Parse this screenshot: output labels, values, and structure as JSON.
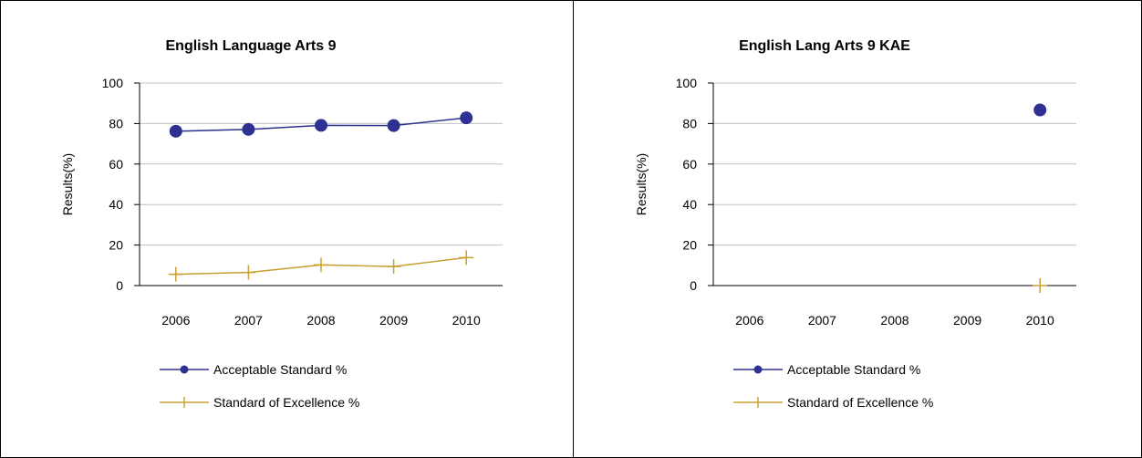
{
  "colors": {
    "acceptable": "#2e3192",
    "excellence": "#c8a032",
    "grid": "#c0c0c0",
    "axis": "#000000"
  },
  "chart_data": [
    {
      "type": "line",
      "title": "English Language Arts 9",
      "ylabel": "Results(%)",
      "xlabel": "",
      "categories": [
        "2006",
        "2007",
        "2008",
        "2009",
        "2010"
      ],
      "yticks": [
        "0",
        "20",
        "40",
        "60",
        "80",
        "100"
      ],
      "ylim": [
        0,
        100
      ],
      "grid": true,
      "legend_position": "bottom",
      "series": [
        {
          "name": "Acceptable Standard %",
          "marker": "circle",
          "values": [
            76.2,
            77.1,
            79.1,
            79.0,
            82.8
          ]
        },
        {
          "name": "Standard of Excellence %",
          "marker": "plus",
          "values": [
            5.6,
            6.5,
            10.2,
            9.4,
            13.8
          ]
        }
      ]
    },
    {
      "type": "line",
      "title": "English Lang Arts 9 KAE",
      "ylabel": "Results(%)",
      "xlabel": "",
      "categories": [
        "2006",
        "2007",
        "2008",
        "2009",
        "2010"
      ],
      "yticks": [
        "0",
        "20",
        "40",
        "60",
        "80",
        "100"
      ],
      "ylim": [
        0,
        100
      ],
      "grid": true,
      "legend_position": "bottom",
      "series": [
        {
          "name": "Acceptable Standard %",
          "marker": "circle",
          "values": [
            null,
            null,
            null,
            null,
            86.7
          ]
        },
        {
          "name": "Standard of Excellence %",
          "marker": "plus",
          "values": [
            null,
            null,
            null,
            null,
            0
          ]
        }
      ]
    }
  ]
}
